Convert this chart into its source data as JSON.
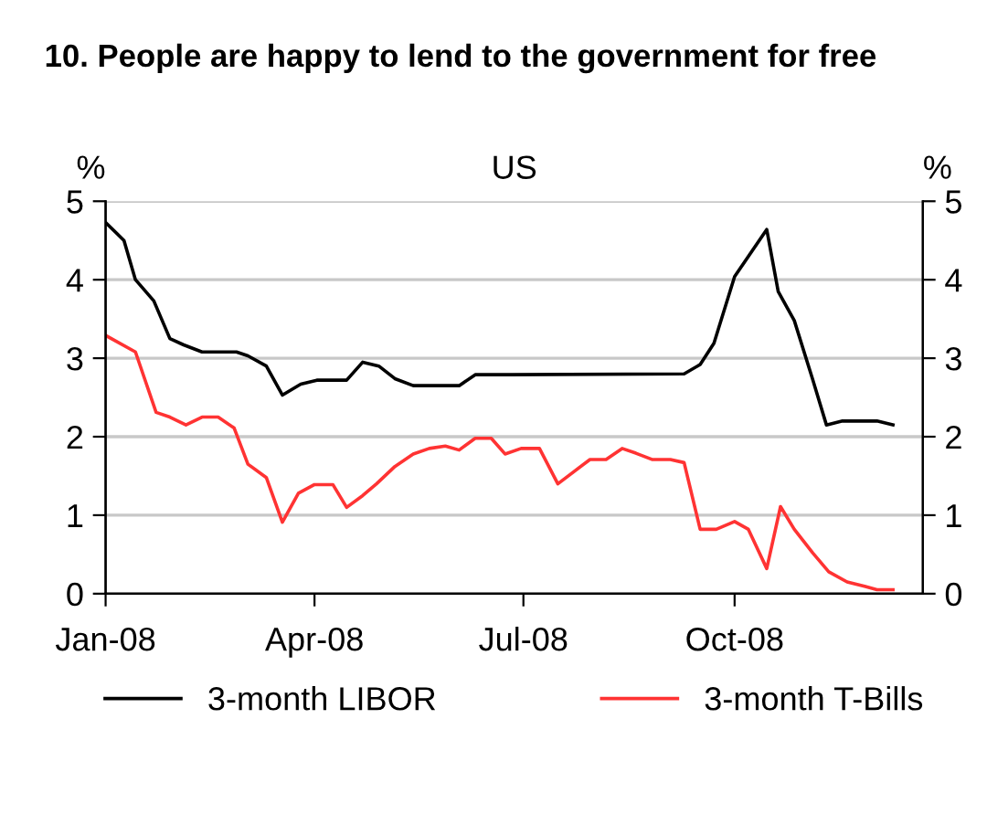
{
  "chart_data": {
    "type": "line",
    "title": "10. People are happy to lend to the government for free",
    "subtitle": "US",
    "ylabel": "%",
    "y2label": "%",
    "xlim": [
      "2008-01-01",
      "2008-12-22"
    ],
    "xticks": [
      {
        "value": "2008-01-01",
        "label": "Jan-08"
      },
      {
        "value": "2008-04-01",
        "label": "Apr-08"
      },
      {
        "value": "2008-07-01",
        "label": "Jul-08"
      },
      {
        "value": "2008-10-01",
        "label": "Oct-08"
      }
    ],
    "ylim": [
      0,
      5
    ],
    "yticks": [
      0,
      1,
      2,
      3,
      4,
      5
    ],
    "y2lim": [
      0,
      5
    ],
    "y2ticks": [
      0,
      1,
      2,
      3,
      4,
      5
    ],
    "grid": "y",
    "legend": "bottom",
    "line_style": "solid",
    "marker": "none",
    "series": [
      {
        "name": "3-month LIBOR",
        "color": "#000000",
        "x": [
          "2008-01-01",
          "2008-01-09",
          "2008-01-14",
          "2008-01-22",
          "2008-01-29",
          "2008-02-04",
          "2008-02-12",
          "2008-02-27",
          "2008-03-03",
          "2008-03-11",
          "2008-03-18",
          "2008-03-26",
          "2008-04-02",
          "2008-04-15",
          "2008-04-22",
          "2008-04-29",
          "2008-05-06",
          "2008-05-14",
          "2008-06-03",
          "2008-06-10",
          "2008-06-25",
          "2008-09-09",
          "2008-09-16",
          "2008-09-22",
          "2008-10-01",
          "2008-10-15",
          "2008-10-20",
          "2008-10-27",
          "2008-11-04",
          "2008-11-10",
          "2008-11-17",
          "2008-12-02",
          "2008-12-09"
        ],
        "values": [
          4.73,
          4.5,
          4.0,
          3.73,
          3.25,
          3.17,
          3.08,
          3.08,
          3.03,
          2.9,
          2.53,
          2.67,
          2.72,
          2.72,
          2.95,
          2.9,
          2.74,
          2.65,
          2.65,
          2.79,
          2.79,
          2.8,
          2.92,
          3.19,
          4.04,
          4.64,
          3.85,
          3.48,
          2.73,
          2.15,
          2.2,
          2.2,
          2.15
        ]
      },
      {
        "name": "3-month T-Bills",
        "color": "#ff3333",
        "x": [
          "2008-01-01",
          "2008-01-14",
          "2008-01-23",
          "2008-01-29",
          "2008-02-05",
          "2008-02-12",
          "2008-02-19",
          "2008-02-26",
          "2008-03-03",
          "2008-03-11",
          "2008-03-18",
          "2008-03-25",
          "2008-04-01",
          "2008-04-09",
          "2008-04-15",
          "2008-04-22",
          "2008-04-28",
          "2008-05-06",
          "2008-05-14",
          "2008-05-21",
          "2008-05-28",
          "2008-06-03",
          "2008-06-10",
          "2008-06-17",
          "2008-06-23",
          "2008-06-30",
          "2008-07-08",
          "2008-07-16",
          "2008-07-30",
          "2008-08-06",
          "2008-08-13",
          "2008-08-19",
          "2008-08-26",
          "2008-09-03",
          "2008-09-09",
          "2008-09-16",
          "2008-09-23",
          "2008-10-01",
          "2008-10-07",
          "2008-10-15",
          "2008-10-21",
          "2008-10-27",
          "2008-11-04",
          "2008-11-11",
          "2008-11-19",
          "2008-11-27",
          "2008-12-02",
          "2008-12-09"
        ],
        "values": [
          3.29,
          3.08,
          2.31,
          2.25,
          2.15,
          2.25,
          2.25,
          2.11,
          1.65,
          1.48,
          0.91,
          1.28,
          1.39,
          1.39,
          1.1,
          1.25,
          1.4,
          1.62,
          1.78,
          1.85,
          1.88,
          1.83,
          1.98,
          1.98,
          1.78,
          1.85,
          1.85,
          1.4,
          1.71,
          1.71,
          1.85,
          1.79,
          1.71,
          1.71,
          1.67,
          0.82,
          0.82,
          0.92,
          0.82,
          0.32,
          1.11,
          0.82,
          0.52,
          0.28,
          0.15,
          0.09,
          0.05,
          0.05
        ]
      }
    ]
  }
}
